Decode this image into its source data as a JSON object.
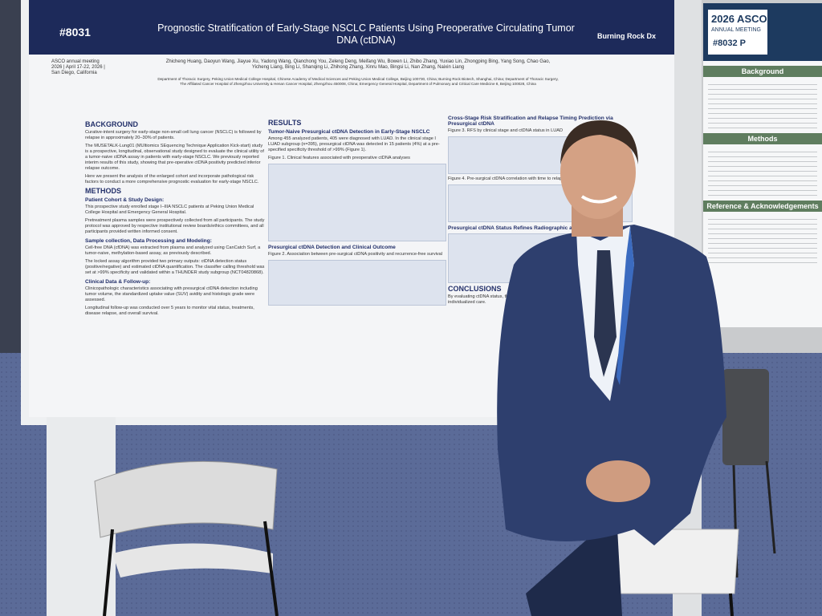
{
  "poster": {
    "id": "#8031",
    "title": "Prognostic Stratification of Early-Stage NSCLC Patients Using Preoperative Circulating Tumor DNA (ctDNA)",
    "logo": "Burning Rock Dx",
    "meeting": [
      "ASCO annual meeting",
      "2026 | April 17-22, 2026 |",
      "San Diego, California"
    ],
    "authors": "Zhicheng Huang, Daoyun Wang, Jiayue Xu, Yadong Wang, Qianchong You, Zeleng Deng, Meifang Wu, Bowen Li, Zhibo Zhang, Yuxiao Lin, Zhongping Bing, Yang Song, Chao Gao, Yicheng Liang, Bing Li, Shanqing Li, Zhihong Zhang, Xinru Mao, Bingsi Li, Nan Zhang, Naixin Liang",
    "affiliations": "Department of Thoracic Surgery, Peking Union Medical College Hospital, Chinese Academy of Medical Sciences and Peking Union Medical College, Beijing 100730, China; Burning Rock Biotech, Shanghai, China; Department of Thoracic Surgery, The Affiliated Cancer Hospital of Zhengzhou University & Henan Cancer Hospital, Zhengzhou 450008, China; Emergency General Hospital, Department of Pulmonary and Critical Care Medicine 8, Beijing 100028, China",
    "background": {
      "heading": "BACKGROUND",
      "bullets": [
        "Curative-intent surgery for early-stage non-small cell lung cancer (NSCLC) is followed by relapse in approximately 20–30% of patients.",
        "The MUSETALK-Lung01 (MUltiomics SEquencing Technique Application Kick-start) study is a prospective, longitudinal, observational study designed to evaluate the clinical utility of a tumor-naive ctDNA assay in patients with early-stage NSCLC. We previously reported interim results of this study, showing that pre-operative ctDNA positivity predicted inferior relapse outcome.",
        "Here we present the analysis of the enlarged cohort and incorporate pathological risk factors to conduct a more comprehensive prognostic evaluation for early-stage NSCLC."
      ]
    },
    "methods": {
      "heading": "METHODS",
      "subsections": [
        {
          "heading": "Patient Cohort & Study Design:",
          "bullets": [
            "This prospective study enrolled stage I–IIIA NSCLC patients at Peking Union Medical College Hospital and Emergency General Hospital.",
            "Pretreatment plasma samples were prospectively collected from all participants. The study protocol was approved by respective institutional review boards/ethics committees, and all participants provided written informed consent."
          ]
        },
        {
          "heading": "Sample collection, Data Processing and Modeling:",
          "bullets": [
            "Cell-free DNA (cfDNA) was extracted from plasma and analyzed using CanCatch Surf, a tumor-naive, methylation-based assay, as previously described.",
            "The locked assay algorithm provided two primary outputs: ctDNA detection status (positive/negative) and estimated ctDNA quantification. The classifier calling threshold was set at >99% specificity and validated within a THUNDER study subgroup (NCT04820868)."
          ]
        },
        {
          "heading": "Clinical Data & Follow-up:",
          "bullets": [
            "Clinicopathologic characteristics associating with presurgical ctDNA detection including tumor volume, the standardized uptake value (SUV) avidity and histologic grade were assessed.",
            "Longitudinal follow-up was conducted over 5 years to monitor vital status, treatments, disease relapse, and overall survival."
          ]
        }
      ]
    },
    "results": {
      "heading": "RESULTS",
      "sub1": "Tumor-Naive Presurgical ctDNA Detection in Early-Stage NSCLC",
      "text1": "Among 455 analyzed patients, 405 were diagnosed with LUAD. In the clinical stage I LUAD subgroup (n=395), presurgical ctDNA was detected in 15 patients (4%) at a pre-specified specificity threshold of >99% (Figure 1).",
      "fig1": "Figure 1. Clinical features associated with preoperative ctDNA analyses",
      "sub2": "Presurgical ctDNA Detection and Clinical Outcome",
      "fig2": "Figure 2. Association between pre-surgical ctDNA positivity and recurrence-free survival",
      "sub3": "Cross-Stage Risk Stratification and Relapse Timing Prediction via Presurgical ctDNA",
      "fig3": "Figure 3. RFS by clinical stage and ctDNA status in LUAD",
      "fig4": "Figure 4. Pre-surgical ctDNA correlation with time to relapse",
      "sub4": "Presurgical ctDNA Status Refines Radiographic and Pathological Risk"
    },
    "conclusions": {
      "heading": "CONCLUSIONS",
      "text": "By evaluating ctDNA status, the non-invasive, nature of this assay may benefit from individualized care."
    }
  },
  "neighbor_poster": {
    "brand": "2026 ASCO",
    "meeting": "ANNUAL MEETING",
    "id": "#8032 P",
    "sections": [
      "Background",
      "Methods",
      "Reference & Acknowledgements"
    ]
  }
}
